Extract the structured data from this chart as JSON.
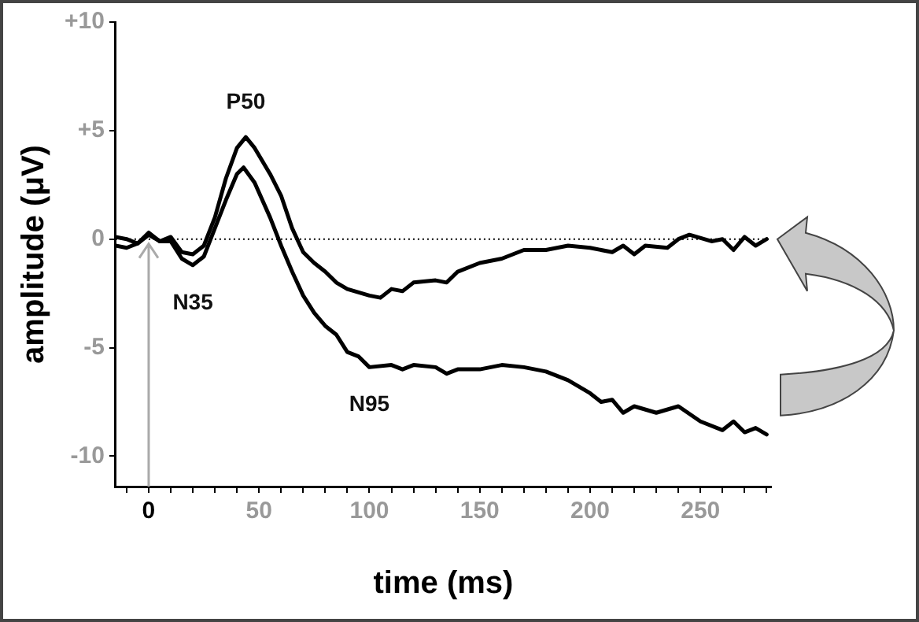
{
  "chart_data": {
    "type": "line",
    "xlabel": "time (ms)",
    "ylabel": "amplitude (μV)",
    "xlim": [
      -15,
      282
    ],
    "ylim": [
      -11.4,
      10
    ],
    "xticks": [
      {
        "value": -10,
        "label": null
      },
      0,
      {
        "value": 10,
        "label": null
      },
      {
        "value": 20,
        "label": null
      },
      {
        "value": 30,
        "label": null
      },
      {
        "value": 40,
        "label": null
      },
      50,
      {
        "value": 60,
        "label": null
      },
      {
        "value": 70,
        "label": null
      },
      {
        "value": 80,
        "label": null
      },
      {
        "value": 90,
        "label": null
      },
      100,
      {
        "value": 110,
        "label": null
      },
      {
        "value": 120,
        "label": null
      },
      {
        "value": 130,
        "label": null
      },
      {
        "value": 140,
        "label": null
      },
      150,
      {
        "value": 160,
        "label": null
      },
      {
        "value": 170,
        "label": null
      },
      {
        "value": 180,
        "label": null
      },
      {
        "value": 190,
        "label": null
      },
      200,
      {
        "value": 210,
        "label": null
      },
      {
        "value": 220,
        "label": null
      },
      {
        "value": 230,
        "label": null
      },
      {
        "value": 240,
        "label": null
      },
      250,
      {
        "value": 260,
        "label": null
      },
      {
        "value": 270,
        "label": null
      },
      {
        "value": 280,
        "label": null
      }
    ],
    "yticks": [
      {
        "value": -10,
        "label": "-10"
      },
      {
        "value": -5,
        "label": "-5"
      },
      0,
      {
        "value": 5,
        "label": "+5"
      },
      {
        "value": 10,
        "label": "+10"
      }
    ],
    "grid": false,
    "legend": false,
    "marker": "none",
    "line_style": "solid",
    "ref_lines": [
      {
        "axis": "y",
        "value": 0,
        "label": null,
        "color": "#000000",
        "line_style": "dotted"
      }
    ],
    "annotations": [
      {
        "text": "P50",
        "x": 44,
        "y": 4.7
      },
      {
        "text": "N35",
        "x": 20,
        "y": -1.2
      },
      {
        "text": "N95",
        "x": 100,
        "y": -5.9
      }
    ],
    "series": [
      {
        "color": "#000000",
        "x": [
          -15,
          -10,
          -5,
          0,
          5,
          10,
          15,
          20,
          25,
          30,
          35,
          40,
          44,
          48,
          55,
          60,
          65,
          70,
          75,
          80,
          85,
          90,
          100,
          105,
          110,
          115,
          120,
          130,
          135,
          140,
          150,
          160,
          170,
          180,
          190,
          200,
          210,
          215,
          220,
          225,
          235,
          240,
          245,
          255,
          260,
          265,
          270,
          275,
          280
        ],
        "values": [
          0.1,
          0,
          -0.2,
          0.3,
          -0.1,
          0.1,
          -0.6,
          -0.7,
          -0.3,
          1.0,
          2.8,
          4.2,
          4.7,
          4.2,
          3.0,
          2.0,
          0.5,
          -0.6,
          -1.1,
          -1.5,
          -2.0,
          -2.3,
          -2.6,
          -2.7,
          -2.3,
          -2.4,
          -2.0,
          -1.9,
          -2.0,
          -1.5,
          -1.1,
          -0.9,
          -0.5,
          -0.5,
          -0.3,
          -0.4,
          -0.6,
          -0.3,
          -0.7,
          -0.3,
          -0.4,
          0,
          0.2,
          -0.1,
          0,
          -0.5,
          0.1,
          -0.3,
          0
        ]
      },
      {
        "color": "#000000",
        "x": [
          -15,
          -10,
          -5,
          0,
          5,
          10,
          15,
          20,
          25,
          30,
          35,
          40,
          43,
          48,
          55,
          60,
          65,
          70,
          75,
          80,
          85,
          90,
          95,
          100,
          110,
          115,
          120,
          130,
          135,
          140,
          150,
          160,
          170,
          180,
          190,
          200,
          205,
          210,
          215,
          220,
          230,
          240,
          250,
          260,
          265,
          270,
          275,
          280
        ],
        "values": [
          -0.3,
          -0.4,
          -0.2,
          0.2,
          -0.1,
          -0.1,
          -0.9,
          -1.2,
          -0.8,
          0.5,
          1.8,
          3.0,
          3.3,
          2.6,
          1.0,
          -0.3,
          -1.5,
          -2.6,
          -3.4,
          -4.0,
          -4.4,
          -5.2,
          -5.4,
          -5.9,
          -5.8,
          -6.0,
          -5.8,
          -5.9,
          -6.2,
          -6.0,
          -6.0,
          -5.8,
          -5.9,
          -6.1,
          -6.5,
          -7.1,
          -7.5,
          -7.4,
          -8.0,
          -7.7,
          -8.0,
          -7.7,
          -8.4,
          -8.8,
          -8.4,
          -8.9,
          -8.7,
          -9.0
        ]
      }
    ]
  }
}
